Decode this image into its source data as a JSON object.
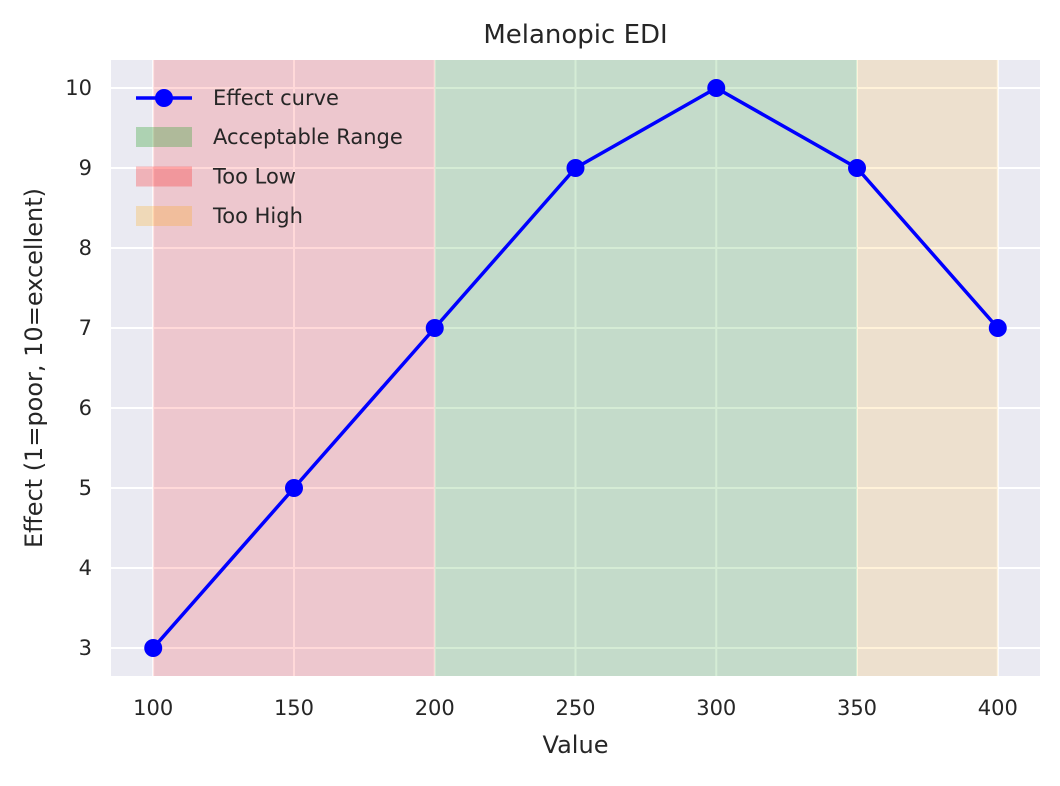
{
  "chart_data": {
    "type": "line",
    "title": "Melanopic EDI",
    "xlabel": "Value",
    "ylabel": "Effect (1=poor, 10=excellent)",
    "xlim": [
      85,
      415
    ],
    "ylim": [
      2.65,
      10.35
    ],
    "x_ticks": [
      100,
      150,
      200,
      250,
      300,
      350,
      400
    ],
    "y_ticks": [
      3,
      4,
      5,
      6,
      7,
      8,
      9,
      10
    ],
    "grid": true,
    "legend_position": "upper-left",
    "series": [
      {
        "name": "Effect curve",
        "x": [
          100,
          150,
          200,
          250,
          300,
          350,
          400
        ],
        "y": [
          3,
          5,
          7,
          9,
          10,
          9,
          7
        ],
        "color": "#0000ff",
        "marker": "circle"
      }
    ],
    "regions": [
      {
        "name": "Acceptable Range",
        "x_start": 200,
        "x_end": 350,
        "color": "#2ca02c",
        "opacity": 0.2
      },
      {
        "name": "Too Low",
        "x_start": 100,
        "x_end": 200,
        "color": "#ff0000",
        "opacity": 0.15
      },
      {
        "name": "Too High",
        "x_start": 350,
        "x_end": 400,
        "color": "#ffa500",
        "opacity": 0.15
      }
    ],
    "legend": [
      "Effect curve",
      "Acceptable Range",
      "Too Low",
      "Too High"
    ],
    "colors": {
      "plot_background": "#eaeaf2",
      "grid": "#ffffff"
    }
  }
}
